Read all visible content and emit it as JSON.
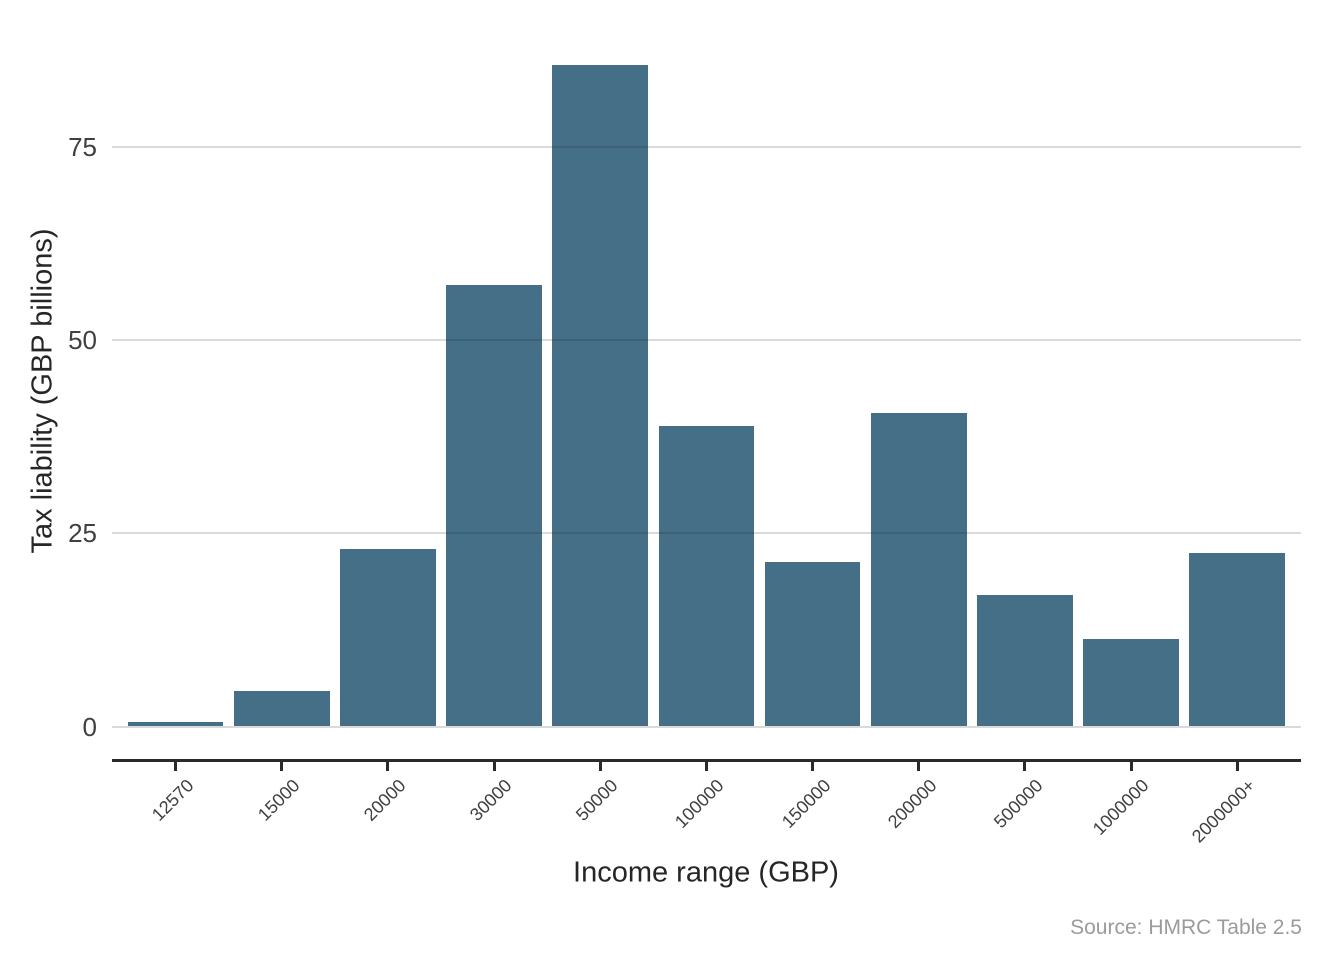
{
  "chart_data": {
    "type": "bar",
    "title": "",
    "categories": [
      "12570",
      "15000",
      "20000",
      "30000",
      "50000",
      "100000",
      "150000",
      "200000",
      "500000",
      "1000000",
      "2000000+"
    ],
    "values": [
      0.6,
      4.6,
      22.9,
      57.1,
      85.6,
      38.9,
      21.3,
      40.6,
      17.0,
      11.3,
      22.4
    ],
    "xlabel": "Income range (GBP)",
    "ylabel": "Tax liability (GBP billions)",
    "ylim": [
      0,
      87
    ],
    "yticks": [
      0,
      25,
      50,
      75
    ],
    "grid": "horizontal-only",
    "legend": "none",
    "source_note": "Source: HMRC Table 2.5"
  },
  "colors": {
    "bar": "#456e87",
    "gridline": "#dadada",
    "axis_line": "#2b2b2b",
    "tick_label": "#404040",
    "axis_title": "#262626",
    "source_text": "#9b9b9b",
    "background": "#ffffff"
  }
}
